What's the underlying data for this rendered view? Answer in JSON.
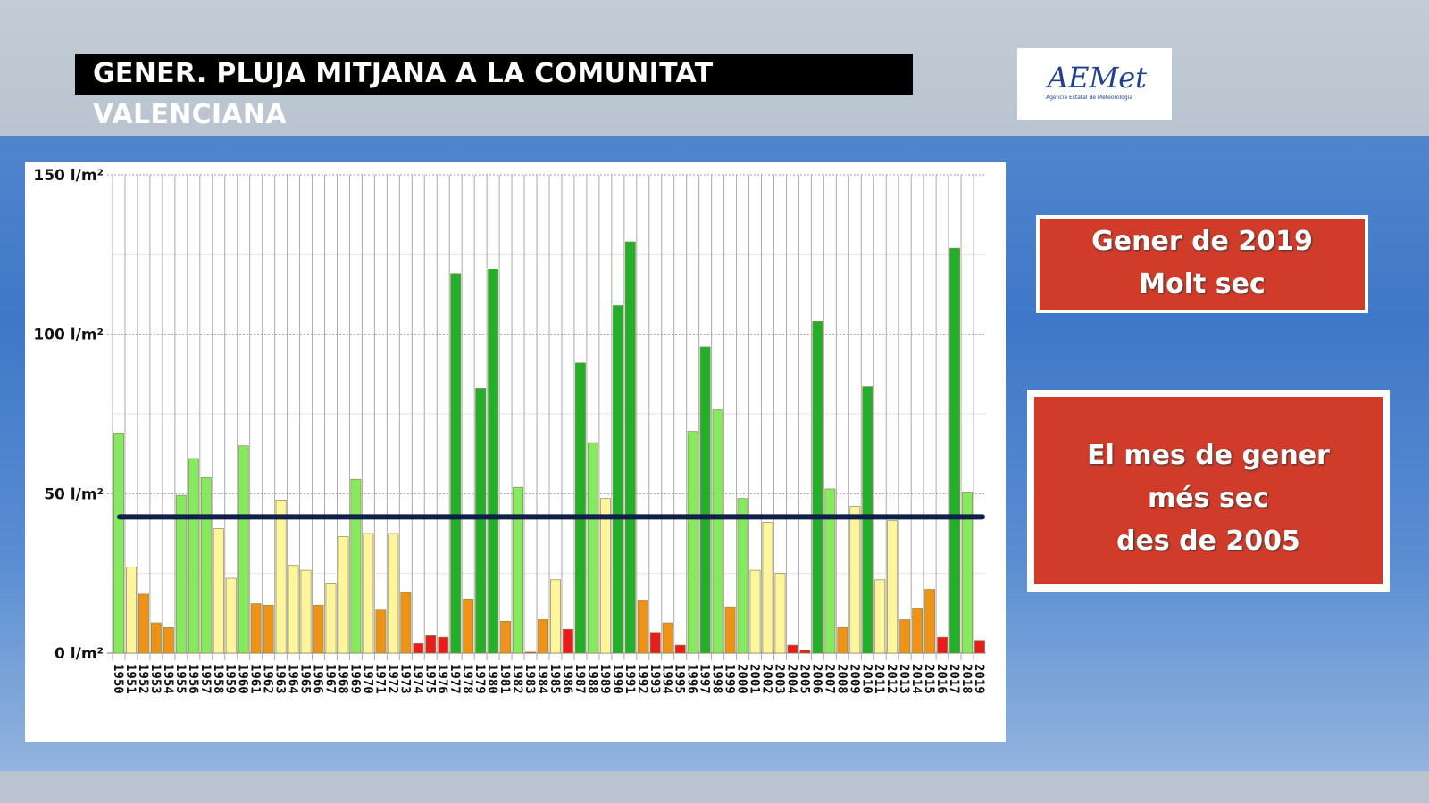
{
  "title": "GENER. PLUJA MITJANA A LA COMUNITAT VALENCIANA",
  "logo": {
    "text": "AEMet",
    "subtitle": "Agencia Estatal de Meteorología"
  },
  "info_box_1": {
    "line1": "Gener de 2019",
    "line2": "Molt sec"
  },
  "info_box_2": {
    "line1": "El mes de gener",
    "line2": "més sec",
    "line3": "des de 2005"
  },
  "colors": {
    "D": "#22b02a",
    "L": "#86ea5e",
    "Y": "#fff59a",
    "O": "#ee9318",
    "R": "#e81c1c",
    "mean_line": "#0f1f48"
  },
  "chart_data": {
    "type": "bar",
    "title": "GENER. PLUJA MITJANA A LA COMUNITAT VALENCIANA",
    "xlabel": "",
    "ylabel": "l/m²",
    "ylim": [
      0,
      150
    ],
    "yticks": [
      {
        "v": 0,
        "label": "0 l/m²"
      },
      {
        "v": 50,
        "label": "50 l/m²"
      },
      {
        "v": 100,
        "label": "100 l/m²"
      },
      {
        "v": 150,
        "label": "150 l/m²"
      }
    ],
    "grid": true,
    "mean": 42.7,
    "categories": [
      "1950",
      "1951",
      "1952",
      "1953",
      "1954",
      "1955",
      "1956",
      "1957",
      "1958",
      "1959",
      "1960",
      "1961",
      "1962",
      "1963",
      "1964",
      "1965",
      "1966",
      "1967",
      "1968",
      "1969",
      "1970",
      "1971",
      "1972",
      "1973",
      "1974",
      "1975",
      "1976",
      "1977",
      "1978",
      "1979",
      "1980",
      "1981",
      "1982",
      "1983",
      "1984",
      "1985",
      "1986",
      "1987",
      "1988",
      "1989",
      "1990",
      "1991",
      "1992",
      "1993",
      "1994",
      "1995",
      "1996",
      "1997",
      "1998",
      "1999",
      "2000",
      "2001",
      "2002",
      "2003",
      "2004",
      "2005",
      "2006",
      "2007",
      "2008",
      "2009",
      "2010",
      "2011",
      "2012",
      "2013",
      "2014",
      "2015",
      "2016",
      "2017",
      "2018",
      "2019"
    ],
    "values": [
      69,
      27,
      18.5,
      9.5,
      8,
      49.5,
      61,
      55,
      39,
      23.5,
      65,
      15.5,
      15,
      48,
      27.5,
      26,
      15,
      22,
      36.5,
      54.5,
      37.5,
      13.5,
      37.5,
      19,
      3,
      5.5,
      5,
      119,
      17,
      83,
      120.5,
      10,
      52,
      0.3,
      10.5,
      23,
      7.5,
      91,
      66,
      48.5,
      109,
      129,
      16.5,
      6.5,
      9.5,
      2.5,
      69.5,
      96,
      76.5,
      14.5,
      48.5,
      26,
      41,
      25,
      2.5,
      1,
      104,
      51.5,
      8,
      46,
      83.5,
      23,
      41.5,
      10.5,
      14,
      20,
      5,
      127,
      50.5,
      4
    ],
    "classes": [
      "L",
      "Y",
      "O",
      "O",
      "O",
      "L",
      "L",
      "L",
      "Y",
      "Y",
      "L",
      "O",
      "O",
      "Y",
      "Y",
      "Y",
      "O",
      "Y",
      "Y",
      "L",
      "Y",
      "O",
      "Y",
      "O",
      "R",
      "R",
      "R",
      "D",
      "O",
      "D",
      "D",
      "O",
      "L",
      "R",
      "O",
      "Y",
      "R",
      "D",
      "L",
      "Y",
      "D",
      "D",
      "O",
      "R",
      "O",
      "R",
      "L",
      "D",
      "L",
      "O",
      "L",
      "Y",
      "Y",
      "Y",
      "R",
      "R",
      "D",
      "L",
      "O",
      "Y",
      "D",
      "Y",
      "Y",
      "O",
      "O",
      "O",
      "R",
      "D",
      "L",
      "R"
    ]
  }
}
